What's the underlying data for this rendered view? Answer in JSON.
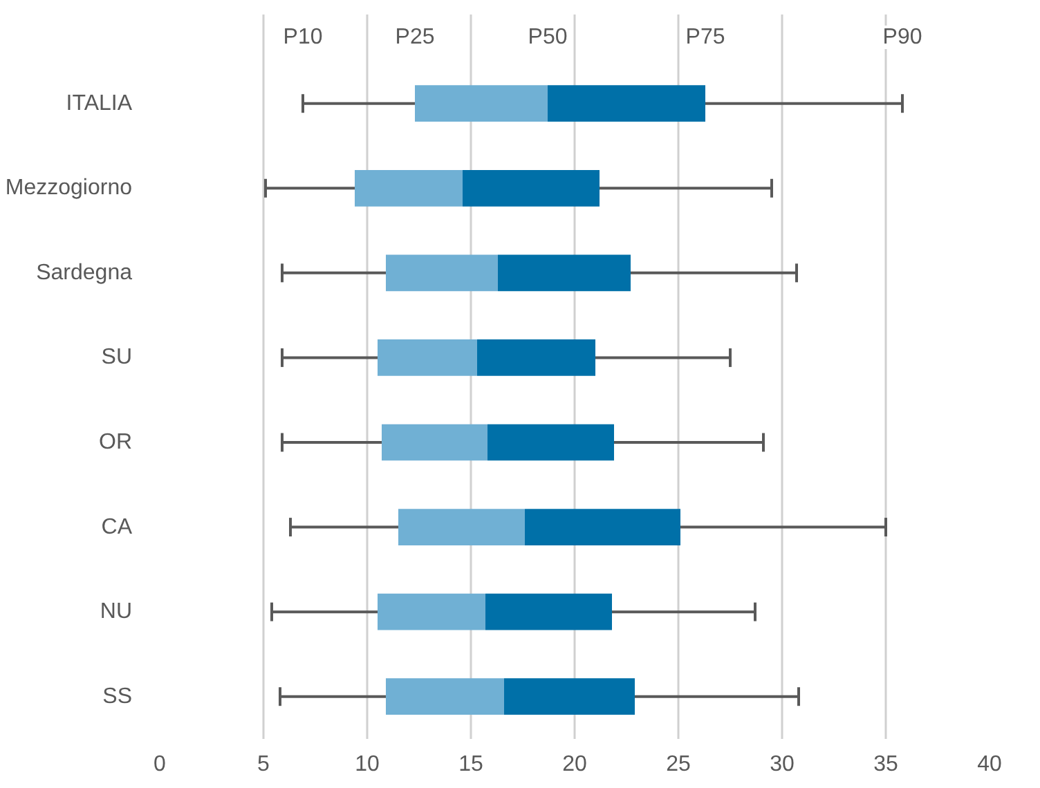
{
  "chart_data": {
    "type": "box",
    "orientation": "horizontal",
    "categories": [
      "ITALIA",
      "Mezzogiorno",
      "Sardegna",
      "SU",
      "OR",
      "CA",
      "NU",
      "SS"
    ],
    "series": [
      {
        "color": "#0070a8",
        "colors": [
          "#70b0d4",
          "#70b0d4",
          "#70b0d4",
          "#70b0d4",
          "#70b0d4",
          "#70b0d4",
          "#70b0d4",
          "#70b0d4"
        ],
        "boxes": [
          {
            "low": 6.9,
            "q1": 12.3,
            "median": 18.7,
            "q3": 26.3,
            "high": 35.8
          },
          {
            "low": 5.1,
            "q1": 9.4,
            "median": 14.6,
            "q3": 21.2,
            "high": 29.5
          },
          {
            "low": 5.9,
            "q1": 10.9,
            "median": 16.3,
            "q3": 22.7,
            "high": 30.7
          },
          {
            "low": 5.9,
            "q1": 10.5,
            "median": 15.3,
            "q3": 21.0,
            "high": 27.5
          },
          {
            "low": 5.9,
            "q1": 10.7,
            "median": 15.8,
            "q3": 21.9,
            "high": 29.1
          },
          {
            "low": 6.3,
            "q1": 11.5,
            "median": 17.6,
            "q3": 25.1,
            "high": 35.0
          },
          {
            "low": 5.4,
            "q1": 10.5,
            "median": 15.7,
            "q3": 21.8,
            "high": 28.7
          },
          {
            "low": 5.8,
            "q1": 10.9,
            "median": 16.6,
            "q3": 22.9,
            "high": 30.8
          }
        ]
      }
    ],
    "xlim": [
      0,
      40
    ],
    "xticks": [
      0,
      5,
      10,
      15,
      20,
      25,
      30,
      35,
      40
    ],
    "grid": "x",
    "annotations": [
      {
        "text": "P10",
        "x": 6.9
      },
      {
        "text": "P25",
        "x": 12.3
      },
      {
        "text": "P50",
        "x": 18.7
      },
      {
        "text": "P75",
        "x": 26.3
      },
      {
        "text": "P90",
        "x": 35.8
      }
    ]
  }
}
